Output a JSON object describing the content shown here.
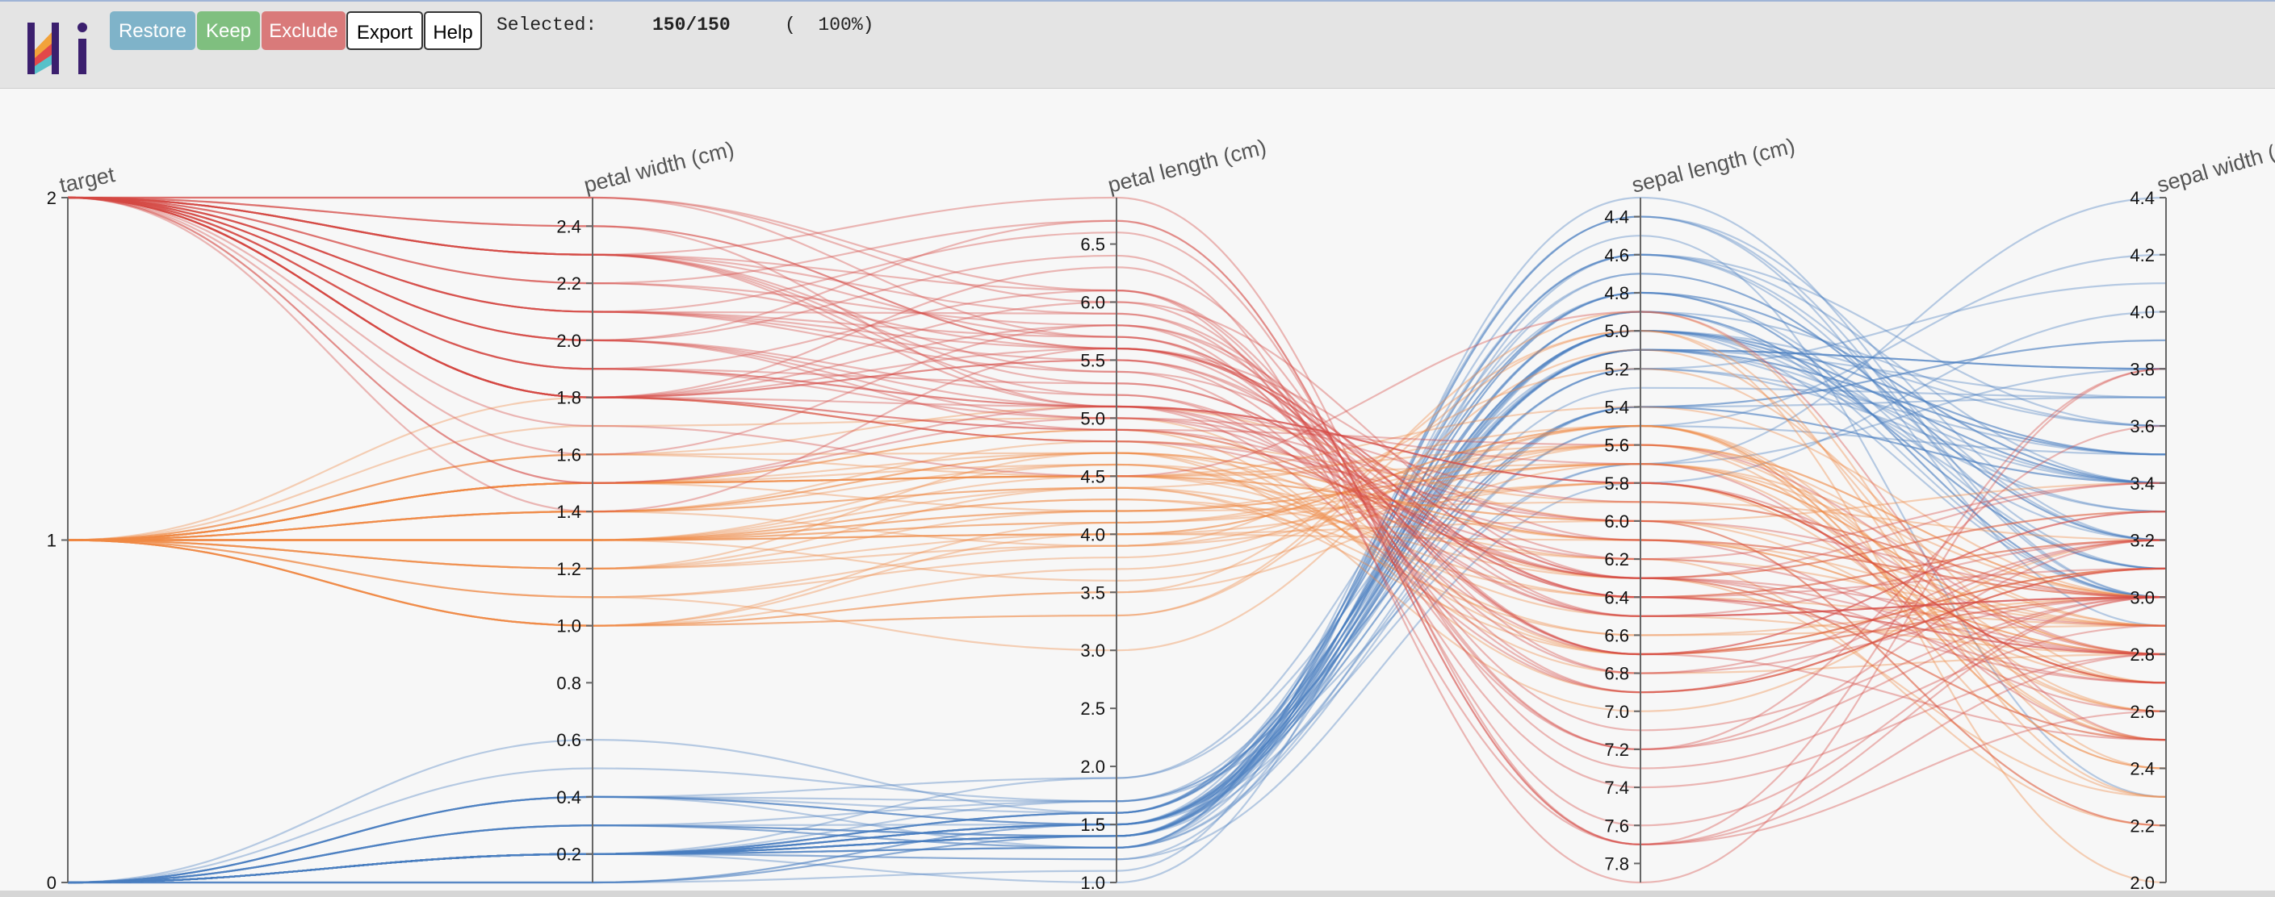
{
  "toolbar": {
    "buttons": {
      "restore": "Restore",
      "keep": "Keep",
      "exclude": "Exclude",
      "export": "Export",
      "help": "Help"
    },
    "selected_label": "Selected:",
    "selected_count": "150/150",
    "selected_percent": "(  100%)"
  },
  "colors": {
    "restore": "#7fb3c9",
    "keep": "#7fbf7f",
    "exclude": "#d97a7a",
    "class0": "#4a7fbf",
    "class1": "#f08a45",
    "class2": "#d54a44",
    "axis": "#666666"
  },
  "chart_data": {
    "type": "parallel_coordinates",
    "axes": [
      {
        "name": "target",
        "title": "target",
        "min": 0,
        "max": 2,
        "ticks": [
          "0",
          "1",
          "2"
        ],
        "tick_values": [
          0,
          1,
          2
        ]
      },
      {
        "name": "petal width (cm)",
        "title": "petal width (cm)",
        "min": 0.1,
        "max": 2.5,
        "ticks": [
          "0.2",
          "0.4",
          "0.6",
          "0.8",
          "1.0",
          "1.2",
          "1.4",
          "1.6",
          "1.8",
          "2.0",
          "2.2",
          "2.4"
        ],
        "tick_values": [
          0.2,
          0.4,
          0.6,
          0.8,
          1.0,
          1.2,
          1.4,
          1.6,
          1.8,
          2.0,
          2.2,
          2.4
        ]
      },
      {
        "name": "petal length (cm)",
        "title": "petal length (cm)",
        "min": 1.0,
        "max": 6.9,
        "ticks": [
          "1.0",
          "1.5",
          "2.0",
          "2.5",
          "3.0",
          "3.5",
          "4.0",
          "4.5",
          "5.0",
          "5.5",
          "6.0",
          "6.5"
        ],
        "tick_values": [
          1.0,
          1.5,
          2.0,
          2.5,
          3.0,
          3.5,
          4.0,
          4.5,
          5.0,
          5.5,
          6.0,
          6.5
        ]
      },
      {
        "name": "sepal length (cm)",
        "title": "sepal length (cm)",
        "min": 4.3,
        "max": 7.9,
        "inverted": true,
        "ticks": [
          "4.4",
          "4.6",
          "4.8",
          "5.0",
          "5.2",
          "5.4",
          "5.6",
          "5.8",
          "6.0",
          "6.2",
          "6.4",
          "6.6",
          "6.8",
          "7.0",
          "7.2",
          "7.4",
          "7.6",
          "7.8"
        ],
        "tick_values": [
          4.4,
          4.6,
          4.8,
          5.0,
          5.2,
          5.4,
          5.6,
          5.8,
          6.0,
          6.2,
          6.4,
          6.6,
          6.8,
          7.0,
          7.2,
          7.4,
          7.6,
          7.8
        ]
      },
      {
        "name": "sepal width (cm)",
        "title": "sepal width (cm)",
        "min": 2.0,
        "max": 4.4,
        "ticks": [
          "2.0",
          "2.2",
          "2.4",
          "2.6",
          "2.8",
          "3.0",
          "3.2",
          "3.4",
          "3.6",
          "3.8",
          "4.0",
          "4.2",
          "4.4"
        ],
        "tick_values": [
          2.0,
          2.2,
          2.4,
          2.6,
          2.8,
          3.0,
          3.2,
          3.4,
          3.6,
          3.8,
          4.0,
          4.2,
          4.4
        ]
      }
    ],
    "color_by": "target",
    "records": [
      [
        0,
        0.2,
        1.4,
        5.1,
        3.5
      ],
      [
        0,
        0.2,
        1.4,
        4.9,
        3.0
      ],
      [
        0,
        0.2,
        1.3,
        4.7,
        3.2
      ],
      [
        0,
        0.2,
        1.5,
        4.6,
        3.1
      ],
      [
        0,
        0.2,
        1.4,
        5.0,
        3.6
      ],
      [
        0,
        0.4,
        1.7,
        5.4,
        3.9
      ],
      [
        0,
        0.3,
        1.4,
        4.6,
        3.4
      ],
      [
        0,
        0.2,
        1.5,
        5.0,
        3.4
      ],
      [
        0,
        0.2,
        1.4,
        4.4,
        2.9
      ],
      [
        0,
        0.1,
        1.5,
        4.9,
        3.1
      ],
      [
        0,
        0.2,
        1.5,
        5.4,
        3.7
      ],
      [
        0,
        0.2,
        1.6,
        4.8,
        3.4
      ],
      [
        0,
        0.1,
        1.4,
        4.8,
        3.0
      ],
      [
        0,
        0.1,
        1.1,
        4.3,
        3.0
      ],
      [
        0,
        0.2,
        1.2,
        5.8,
        4.0
      ],
      [
        0,
        0.4,
        1.5,
        5.7,
        4.4
      ],
      [
        0,
        0.4,
        1.3,
        5.4,
        3.9
      ],
      [
        0,
        0.3,
        1.4,
        5.1,
        3.5
      ],
      [
        0,
        0.3,
        1.7,
        5.7,
        3.8
      ],
      [
        0,
        0.3,
        1.5,
        5.1,
        3.8
      ],
      [
        0,
        0.2,
        1.7,
        5.4,
        3.4
      ],
      [
        0,
        0.4,
        1.5,
        5.1,
        3.7
      ],
      [
        0,
        0.2,
        1.0,
        4.6,
        3.6
      ],
      [
        0,
        0.5,
        1.7,
        5.1,
        3.3
      ],
      [
        0,
        0.2,
        1.9,
        4.8,
        3.4
      ],
      [
        0,
        0.2,
        1.6,
        5.0,
        3.0
      ],
      [
        0,
        0.4,
        1.6,
        5.0,
        3.4
      ],
      [
        0,
        0.2,
        1.5,
        5.2,
        3.5
      ],
      [
        0,
        0.2,
        1.4,
        5.2,
        3.4
      ],
      [
        0,
        0.2,
        1.6,
        4.7,
        3.2
      ],
      [
        0,
        0.2,
        1.6,
        4.8,
        3.1
      ],
      [
        0,
        0.4,
        1.5,
        5.4,
        3.4
      ],
      [
        0,
        0.1,
        1.5,
        5.2,
        4.1
      ],
      [
        0,
        0.2,
        1.4,
        5.5,
        4.2
      ],
      [
        0,
        0.2,
        1.5,
        4.9,
        3.1
      ],
      [
        0,
        0.2,
        1.2,
        5.0,
        3.2
      ],
      [
        0,
        0.2,
        1.3,
        5.5,
        3.5
      ],
      [
        0,
        0.1,
        1.4,
        4.9,
        3.6
      ],
      [
        0,
        0.2,
        1.3,
        4.4,
        3.0
      ],
      [
        0,
        0.2,
        1.5,
        5.1,
        3.4
      ],
      [
        0,
        0.3,
        1.3,
        5.0,
        3.5
      ],
      [
        0,
        0.3,
        1.3,
        4.5,
        2.3
      ],
      [
        0,
        0.2,
        1.3,
        4.4,
        3.2
      ],
      [
        0,
        0.6,
        1.6,
        5.0,
        3.5
      ],
      [
        0,
        0.4,
        1.9,
        5.1,
        3.8
      ],
      [
        0,
        0.3,
        1.4,
        4.8,
        3.0
      ],
      [
        0,
        0.2,
        1.6,
        5.1,
        3.8
      ],
      [
        0,
        0.2,
        1.4,
        4.6,
        3.2
      ],
      [
        0,
        0.2,
        1.5,
        5.3,
        3.7
      ],
      [
        0,
        0.2,
        1.4,
        5.0,
        3.3
      ],
      [
        1,
        1.4,
        4.7,
        7.0,
        3.2
      ],
      [
        1,
        1.5,
        4.5,
        6.4,
        3.2
      ],
      [
        1,
        1.5,
        4.9,
        6.9,
        3.1
      ],
      [
        1,
        1.3,
        4.0,
        5.5,
        2.3
      ],
      [
        1,
        1.5,
        4.6,
        6.5,
        2.8
      ],
      [
        1,
        1.3,
        4.5,
        5.7,
        2.8
      ],
      [
        1,
        1.6,
        4.7,
        6.3,
        3.3
      ],
      [
        1,
        1.0,
        3.3,
        4.9,
        2.4
      ],
      [
        1,
        1.3,
        4.6,
        6.6,
        2.9
      ],
      [
        1,
        1.4,
        3.9,
        5.2,
        2.7
      ],
      [
        1,
        1.0,
        3.5,
        5.0,
        2.0
      ],
      [
        1,
        1.5,
        4.2,
        5.9,
        3.0
      ],
      [
        1,
        1.0,
        4.0,
        6.0,
        2.2
      ],
      [
        1,
        1.4,
        4.7,
        6.1,
        2.9
      ],
      [
        1,
        1.3,
        3.6,
        5.6,
        2.9
      ],
      [
        1,
        1.4,
        4.4,
        6.7,
        3.1
      ],
      [
        1,
        1.5,
        4.5,
        5.6,
        3.0
      ],
      [
        1,
        1.0,
        4.1,
        5.8,
        2.7
      ],
      [
        1,
        1.5,
        4.5,
        6.2,
        2.2
      ],
      [
        1,
        1.1,
        3.9,
        5.6,
        2.5
      ],
      [
        1,
        1.8,
        4.8,
        5.9,
        3.2
      ],
      [
        1,
        1.3,
        4.0,
        6.1,
        2.8
      ],
      [
        1,
        1.5,
        4.9,
        6.3,
        2.5
      ],
      [
        1,
        1.2,
        4.7,
        6.1,
        2.8
      ],
      [
        1,
        1.3,
        4.3,
        6.4,
        2.9
      ],
      [
        1,
        1.4,
        4.4,
        6.6,
        3.0
      ],
      [
        1,
        1.4,
        4.8,
        6.8,
        2.8
      ],
      [
        1,
        1.7,
        5.0,
        6.7,
        3.0
      ],
      [
        1,
        1.5,
        4.5,
        6.0,
        2.9
      ],
      [
        1,
        1.0,
        3.5,
        5.7,
        2.6
      ],
      [
        1,
        1.1,
        3.8,
        5.5,
        2.4
      ],
      [
        1,
        1.0,
        3.7,
        5.5,
        2.4
      ],
      [
        1,
        1.2,
        3.9,
        5.8,
        2.7
      ],
      [
        1,
        1.6,
        5.1,
        6.0,
        2.7
      ],
      [
        1,
        1.5,
        4.5,
        5.4,
        3.0
      ],
      [
        1,
        1.6,
        4.5,
        6.0,
        3.4
      ],
      [
        1,
        1.5,
        4.7,
        6.7,
        3.1
      ],
      [
        1,
        1.3,
        4.4,
        6.3,
        2.3
      ],
      [
        1,
        1.3,
        4.1,
        5.6,
        3.0
      ],
      [
        1,
        1.3,
        4.0,
        5.5,
        2.5
      ],
      [
        1,
        1.2,
        4.4,
        5.5,
        2.6
      ],
      [
        1,
        1.4,
        4.6,
        6.1,
        3.0
      ],
      [
        1,
        1.2,
        4.0,
        5.8,
        2.6
      ],
      [
        1,
        1.0,
        3.3,
        5.0,
        2.3
      ],
      [
        1,
        1.3,
        4.2,
        5.6,
        2.7
      ],
      [
        1,
        1.2,
        4.2,
        5.7,
        3.0
      ],
      [
        1,
        1.3,
        4.2,
        5.7,
        2.9
      ],
      [
        1,
        1.3,
        4.3,
        6.2,
        2.9
      ],
      [
        1,
        1.1,
        3.0,
        5.1,
        2.5
      ],
      [
        1,
        1.3,
        4.1,
        5.7,
        2.8
      ],
      [
        2,
        2.5,
        6.0,
        6.3,
        3.3
      ],
      [
        2,
        1.9,
        5.1,
        5.8,
        2.7
      ],
      [
        2,
        2.1,
        5.9,
        7.1,
        3.0
      ],
      [
        2,
        1.8,
        5.6,
        6.3,
        2.9
      ],
      [
        2,
        2.2,
        5.8,
        6.5,
        3.0
      ],
      [
        2,
        2.1,
        6.6,
        7.6,
        3.0
      ],
      [
        2,
        1.7,
        4.5,
        4.9,
        2.5
      ],
      [
        2,
        1.8,
        6.3,
        7.3,
        2.9
      ],
      [
        2,
        1.8,
        5.8,
        6.7,
        2.5
      ],
      [
        2,
        2.5,
        6.1,
        7.2,
        3.6
      ],
      [
        2,
        2.0,
        5.1,
        6.5,
        3.2
      ],
      [
        2,
        1.9,
        5.3,
        6.4,
        2.7
      ],
      [
        2,
        2.1,
        5.5,
        6.8,
        3.0
      ],
      [
        2,
        2.0,
        5.0,
        5.7,
        2.5
      ],
      [
        2,
        2.4,
        5.1,
        5.8,
        2.8
      ],
      [
        2,
        2.3,
        5.3,
        6.4,
        3.2
      ],
      [
        2,
        1.8,
        5.5,
        6.5,
        3.0
      ],
      [
        2,
        2.2,
        6.7,
        7.7,
        3.8
      ],
      [
        2,
        2.3,
        6.9,
        7.7,
        2.6
      ],
      [
        2,
        1.5,
        5.0,
        6.0,
        2.2
      ],
      [
        2,
        2.3,
        5.7,
        6.9,
        3.2
      ],
      [
        2,
        2.0,
        4.9,
        5.6,
        2.8
      ],
      [
        2,
        2.0,
        6.7,
        7.7,
        2.8
      ],
      [
        2,
        1.8,
        4.9,
        6.3,
        2.7
      ],
      [
        2,
        2.1,
        5.7,
        6.7,
        3.3
      ],
      [
        2,
        1.8,
        6.0,
        7.2,
        3.2
      ],
      [
        2,
        1.8,
        4.8,
        6.2,
        2.8
      ],
      [
        2,
        1.8,
        4.9,
        6.1,
        3.0
      ],
      [
        2,
        2.1,
        5.6,
        6.4,
        2.8
      ],
      [
        2,
        1.6,
        5.8,
        7.2,
        3.0
      ],
      [
        2,
        1.9,
        6.1,
        7.4,
        2.8
      ],
      [
        2,
        2.0,
        6.4,
        7.9,
        3.8
      ],
      [
        2,
        2.2,
        5.6,
        6.4,
        2.8
      ],
      [
        2,
        1.5,
        5.1,
        6.3,
        2.8
      ],
      [
        2,
        1.4,
        5.6,
        6.1,
        2.6
      ],
      [
        2,
        2.3,
        6.1,
        7.7,
        3.0
      ],
      [
        2,
        2.4,
        5.6,
        6.3,
        3.4
      ],
      [
        2,
        1.8,
        5.5,
        6.4,
        3.1
      ],
      [
        2,
        1.8,
        4.8,
        6.0,
        3.0
      ],
      [
        2,
        2.1,
        5.4,
        6.9,
        3.1
      ],
      [
        2,
        2.4,
        5.6,
        6.7,
        3.1
      ],
      [
        2,
        2.3,
        5.1,
        6.9,
        3.1
      ],
      [
        2,
        1.9,
        5.1,
        5.8,
        2.7
      ],
      [
        2,
        2.3,
        5.9,
        6.8,
        3.2
      ],
      [
        2,
        2.5,
        5.7,
        6.7,
        3.3
      ],
      [
        2,
        2.3,
        5.2,
        6.7,
        3.0
      ],
      [
        2,
        1.9,
        5.0,
        6.3,
        2.5
      ],
      [
        2,
        2.0,
        5.2,
        6.5,
        3.0
      ],
      [
        2,
        2.3,
        5.4,
        6.2,
        3.4
      ],
      [
        2,
        1.8,
        5.1,
        5.9,
        3.0
      ]
    ]
  }
}
